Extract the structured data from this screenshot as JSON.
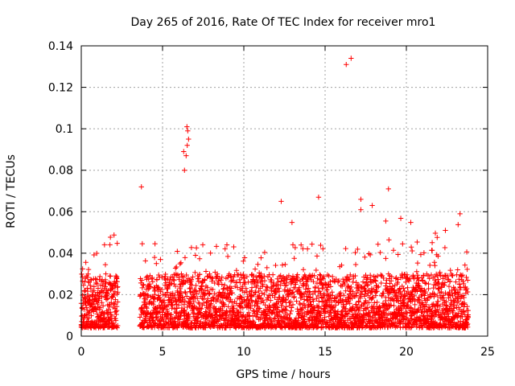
{
  "chart_data": {
    "type": "scatter",
    "title": "Day 265 of 2016, Rate Of TEC Index for receiver mro1",
    "xlabel": "GPS time / hours",
    "ylabel": "ROTI / TECUs",
    "xlim": [
      0,
      25
    ],
    "ylim": [
      0,
      0.14
    ],
    "grid": true,
    "marker": "+",
    "color": "#ff0000",
    "x_ticks": [
      "0",
      "5",
      "10",
      "15",
      "20",
      "25"
    ],
    "y_ticks": [
      "0",
      "0.02",
      "0.04",
      "0.06",
      "0.08",
      "0.1",
      "0.12",
      "0.14"
    ],
    "data_gap_hours": [
      2.25,
      3.6
    ],
    "series": [
      {
        "name": "ROTI",
        "outliers": [
          {
            "x": 3.7,
            "y": 0.072
          },
          {
            "x": 6.3,
            "y": 0.089
          },
          {
            "x": 6.35,
            "y": 0.08
          },
          {
            "x": 6.5,
            "y": 0.101
          },
          {
            "x": 6.55,
            "y": 0.099
          },
          {
            "x": 6.6,
            "y": 0.095
          },
          {
            "x": 6.45,
            "y": 0.087
          },
          {
            "x": 6.52,
            "y": 0.092
          },
          {
            "x": 12.3,
            "y": 0.065
          },
          {
            "x": 14.6,
            "y": 0.067
          },
          {
            "x": 16.3,
            "y": 0.131
          },
          {
            "x": 16.6,
            "y": 0.134
          },
          {
            "x": 17.2,
            "y": 0.066
          },
          {
            "x": 17.2,
            "y": 0.061
          },
          {
            "x": 17.9,
            "y": 0.063
          },
          {
            "x": 18.9,
            "y": 0.071
          },
          {
            "x": 22.4,
            "y": 0.051
          },
          {
            "x": 23.3,
            "y": 0.059
          }
        ],
        "bulk_ranges": [
          {
            "x": [
              0.0,
              2.25
            ],
            "y": [
              0.003,
              0.035
            ]
          },
          {
            "x": [
              3.6,
              23.8
            ],
            "y": [
              0.003,
              0.04
            ]
          }
        ]
      }
    ]
  }
}
